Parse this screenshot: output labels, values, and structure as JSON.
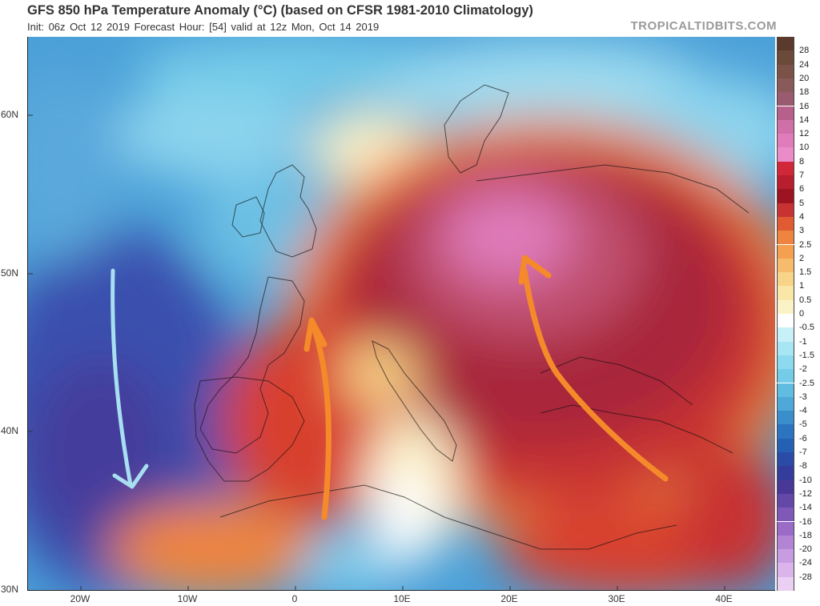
{
  "header": {
    "title": "GFS 850 hPa Temperature Anomaly (°C) (based on CFSR 1981-2010 Climatology)",
    "subtitle": "Init: 06z Oct 12 2019   Forecast Hour: [54]   valid at 12z Mon, Oct 14 2019",
    "brand": "TROPICALTIDBITS.COM"
  },
  "axes": {
    "lat_labels": [
      "60N",
      "50N",
      "40N",
      "30N"
    ],
    "lon_labels": [
      "20W",
      "10W",
      "0",
      "10E",
      "20E",
      "30E",
      "40E"
    ]
  },
  "colorbar": {
    "labels": [
      "28",
      "24",
      "20",
      "18",
      "16",
      "14",
      "12",
      "10",
      "8",
      "7",
      "6",
      "5",
      "4",
      "3",
      "2.5",
      "2",
      "1.5",
      "1",
      "0.5",
      "0",
      "-0.5",
      "-1",
      "-1.5",
      "-2",
      "-2.5",
      "-3",
      "-4",
      "-5",
      "-6",
      "-7",
      "-8",
      "-10",
      "-12",
      "-14",
      "-16",
      "-18",
      "-20",
      "-24",
      "-28"
    ],
    "colors": [
      "#6b4a3a",
      "#7a5248",
      "#8a5a5a",
      "#9a5a70",
      "#b8608c",
      "#d070a8",
      "#e07cbc",
      "#ea8cc8",
      "#d02838",
      "#b81e2e",
      "#9c1422",
      "#c83232",
      "#e05a32",
      "#ee8440",
      "#f4a050",
      "#f6bc6c",
      "#f8d488",
      "#fae6a6",
      "#fcf2c8",
      "#ffffff",
      "#c8f0f8",
      "#a8e6f4",
      "#8cdaf0",
      "#74cce8",
      "#60bce0",
      "#4ea8d8",
      "#3a8ecc",
      "#2c74c0",
      "#2460b4",
      "#2a4ca8",
      "#343c9c",
      "#4a3898",
      "#6448a8",
      "#8058b8",
      "#9a6cc8",
      "#b484d4",
      "#c89ce0",
      "#dab4ea",
      "#ead0f2"
    ]
  },
  "arrows": [
    {
      "name": "atlantic-cold-arrow",
      "color": "#a8dff0"
    },
    {
      "name": "iberia-warm-arrow",
      "color": "#f58a2a"
    },
    {
      "name": "balkan-warm-arrow",
      "color": "#f58a2a"
    }
  ]
}
